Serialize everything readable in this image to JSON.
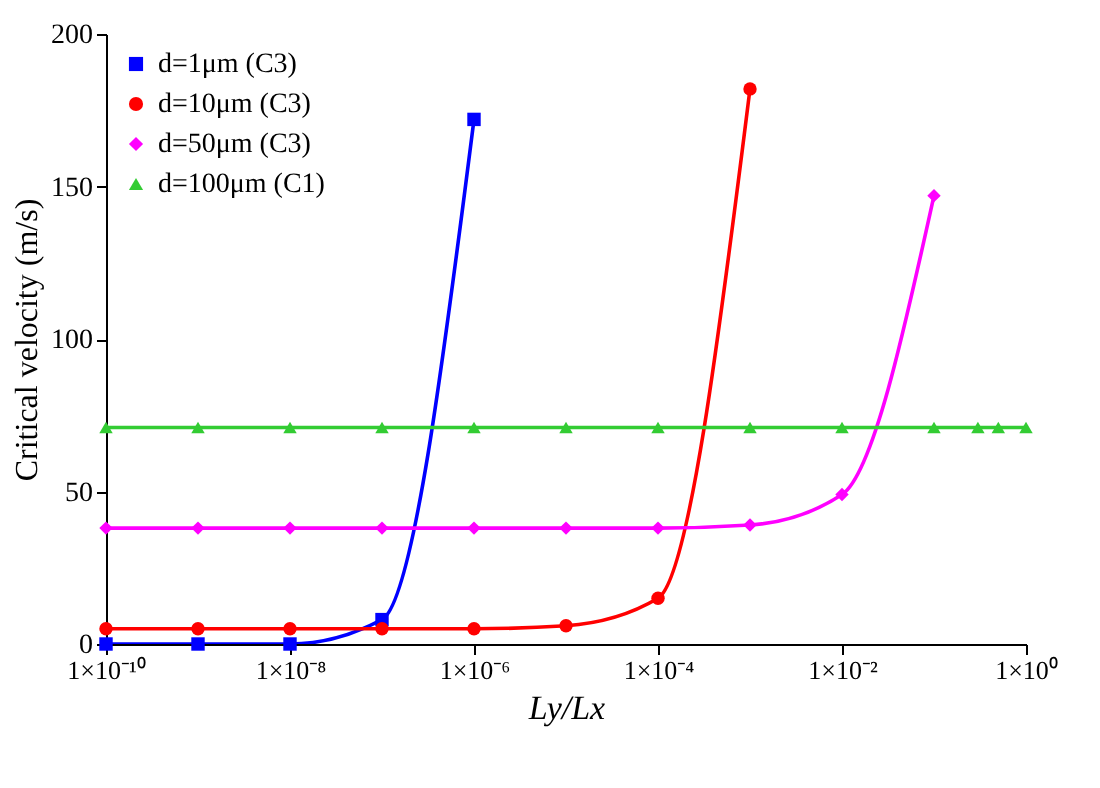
{
  "chart_data": {
    "type": "line",
    "xlabel": "Ly/Lx",
    "ylabel": "Critical velocity (m/s)",
    "log": "x",
    "xlim": [
      1e-10,
      1
    ],
    "ylim": [
      0,
      200
    ],
    "yticks": [
      0,
      50,
      100,
      150,
      200
    ],
    "xticks": [
      {
        "value": 1e-10,
        "label": "1×10⁻¹⁰"
      },
      {
        "value": 1e-08,
        "label": "1×10⁻⁸"
      },
      {
        "value": 1e-06,
        "label": "1×10⁻⁶"
      },
      {
        "value": 0.0001,
        "label": "1×10⁻⁴"
      },
      {
        "value": 0.01,
        "label": "1×10⁻²"
      },
      {
        "value": 1,
        "label": "1×10⁰"
      }
    ],
    "grid": false,
    "legend": "top left",
    "line_style": "solid",
    "series": [
      {
        "name": "d=1μm (C3)",
        "color": "#0000ff",
        "marker": "square",
        "x": [
          1e-10,
          1e-09,
          1e-08,
          1e-07,
          1e-06
        ],
        "values": [
          0,
          0,
          0,
          8,
          172
        ]
      },
      {
        "name": "d=10μm (C3)",
        "color": "#ff0000",
        "marker": "circle",
        "x": [
          1e-10,
          1e-09,
          1e-08,
          1e-07,
          1e-06,
          1e-05,
          0.0001,
          0.001
        ],
        "values": [
          5,
          5,
          5,
          5,
          5,
          6,
          15,
          182
        ]
      },
      {
        "name": "d=50μm  (C3)",
        "color": "#ff00ff",
        "marker": "diamond",
        "x": [
          1e-10,
          1e-09,
          1e-08,
          1e-07,
          1e-06,
          1e-05,
          0.0001,
          0.001,
          0.01,
          0.1
        ],
        "values": [
          38,
          38,
          38,
          38,
          38,
          38,
          38,
          39,
          49,
          147
        ]
      },
      {
        "name": "d=100μm  (C1)",
        "color": "#33cc33",
        "marker": "triangle",
        "x": [
          1e-10,
          1e-09,
          1e-08,
          1e-07,
          1e-06,
          1e-05,
          0.0001,
          0.001,
          0.01,
          0.1,
          0.3,
          0.5,
          1
        ],
        "values": [
          71,
          71,
          71,
          71,
          71,
          71,
          71,
          71,
          71,
          71,
          71,
          71,
          71
        ]
      }
    ]
  }
}
